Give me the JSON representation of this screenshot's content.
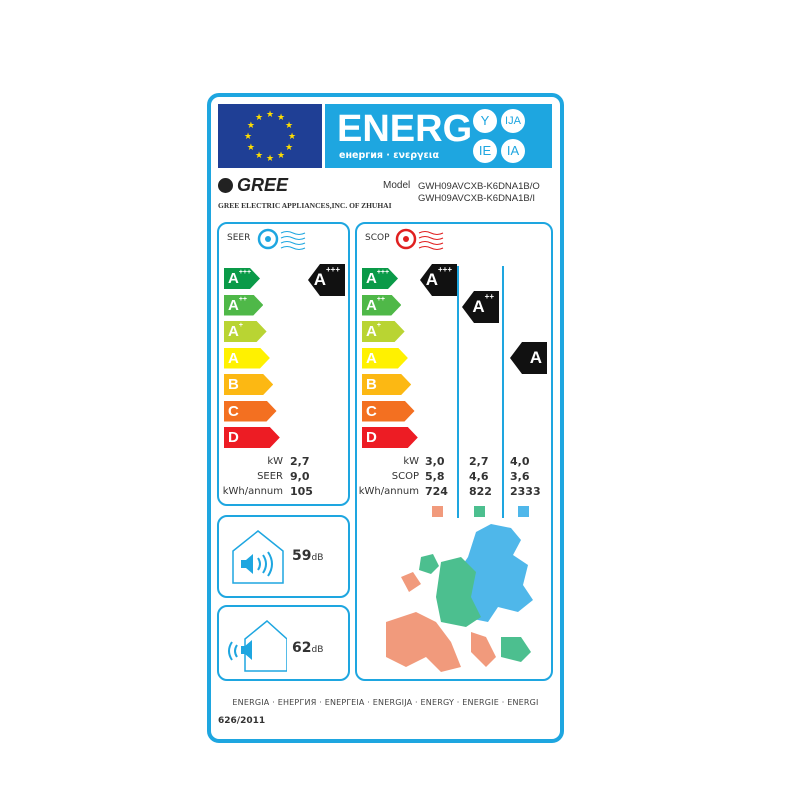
{
  "header": {
    "energ": "ENERG",
    "subtitle": "енергия · ενεργεια",
    "suffixes": [
      "Y",
      "IJA",
      "IE",
      "IA"
    ]
  },
  "brand": {
    "logo": "GREE",
    "company": "GREE ELECTRIC APPLIANCES,INC. OF ZHUHAI"
  },
  "model": {
    "label": "Model",
    "outdoor": "GWH09AVCXB-K6DNA1B/O",
    "indoor": "GWH09AVCXB-K6DNA1B/I"
  },
  "scale": [
    {
      "label": "A",
      "sup": "+++",
      "color": "#0a9a48"
    },
    {
      "label": "A",
      "sup": "++",
      "color": "#4fb848"
    },
    {
      "label": "A",
      "sup": "+",
      "color": "#b9d433"
    },
    {
      "label": "A",
      "sup": "",
      "color": "#fff100"
    },
    {
      "label": "B",
      "sup": "",
      "color": "#fcb813"
    },
    {
      "label": "C",
      "sup": "",
      "color": "#f37021"
    },
    {
      "label": "D",
      "sup": "",
      "color": "#ed1c24"
    }
  ],
  "cooling": {
    "title": "SEER",
    "rating": {
      "label": "A",
      "sup": "+++"
    },
    "labels": {
      "kw": "kW",
      "seer": "SEER",
      "annual": "kWh/annum"
    },
    "values": {
      "kw": "2,7",
      "seer": "9,0",
      "annual": "105"
    }
  },
  "heating": {
    "title": "SCOP",
    "labels": {
      "kw": "kW",
      "scop": "SCOP",
      "annual": "kWh/annum"
    },
    "zones": [
      {
        "rating": {
          "label": "A",
          "sup": "+++"
        },
        "kw": "3,0",
        "scop": "5,8",
        "annual": "724",
        "color": "#f19a7c"
      },
      {
        "rating": {
          "label": "A",
          "sup": "++"
        },
        "kw": "2,7",
        "scop": "4,6",
        "annual": "822",
        "color": "#4cbf8f"
      },
      {
        "rating": {
          "label": "A",
          "sup": ""
        },
        "kw": "4,0",
        "scop": "3,6",
        "annual": "2333",
        "color": "#4fb7ea"
      }
    ]
  },
  "noise": {
    "indoor": {
      "value": "59",
      "unit": "dB"
    },
    "outdoor": {
      "value": "62",
      "unit": "dB"
    }
  },
  "footer": {
    "languages": "ENERGIA · ЕНЕРГИЯ · ΕΝΕΡΓΕΙΑ · ENERGIJA · ENERGY · ENERGIE · ENERGI",
    "regulation": "626/2011"
  }
}
